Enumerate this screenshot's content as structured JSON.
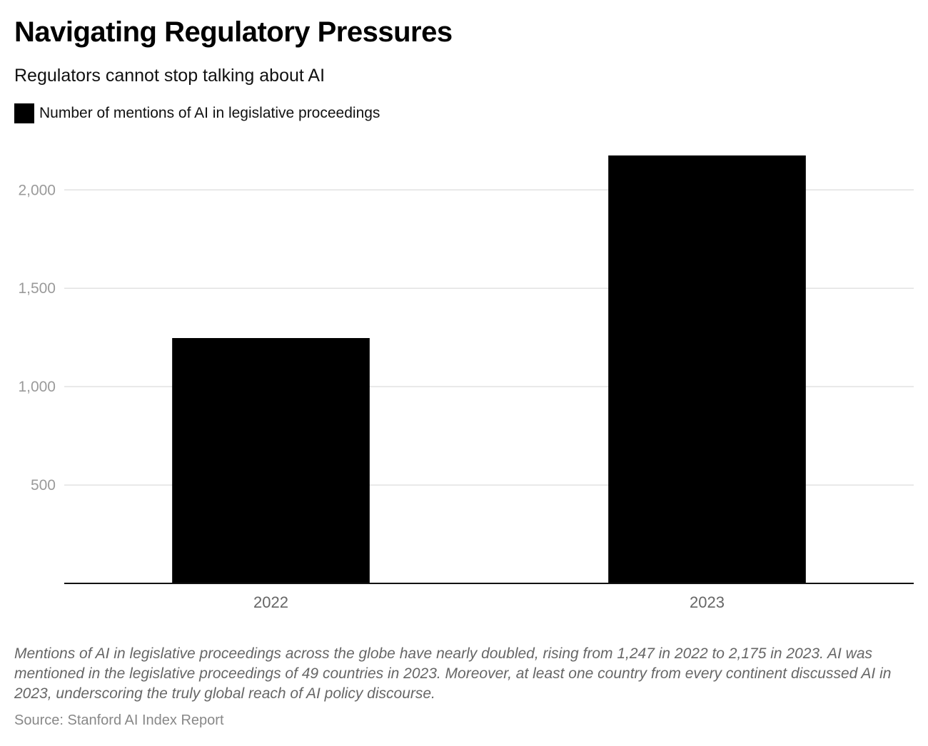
{
  "header": {
    "title": "Navigating Regulatory Pressures",
    "subtitle": "Regulators cannot stop talking about AI"
  },
  "legend": {
    "label": "Number of mentions of AI in legislative proceedings",
    "color": "#000000"
  },
  "chart_data": {
    "type": "bar",
    "categories": [
      "2022",
      "2023"
    ],
    "series": [
      {
        "name": "Number of mentions of AI in legislative proceedings",
        "values": [
          1247,
          2175
        ],
        "color": "#000000"
      }
    ],
    "yticks": [
      500,
      1000,
      1500,
      2000
    ],
    "ytick_labels": [
      "500",
      "1,000",
      "1,500",
      "2,000"
    ],
    "ylim": [
      0,
      2175
    ],
    "grid": true,
    "xlabel": "",
    "ylabel": "",
    "legend_position": "top-left"
  },
  "footer": {
    "description": "Mentions of AI in legislative proceedings across the globe have nearly doubled, rising from 1,247 in 2022 to 2,175 in 2023. AI was mentioned in the legislative proceedings of 49 countries in 2023. Moreover, at least one country from every continent discussed AI in 2023, underscoring the truly global reach of AI policy discourse.",
    "source": "Source: Stanford AI Index Report"
  }
}
